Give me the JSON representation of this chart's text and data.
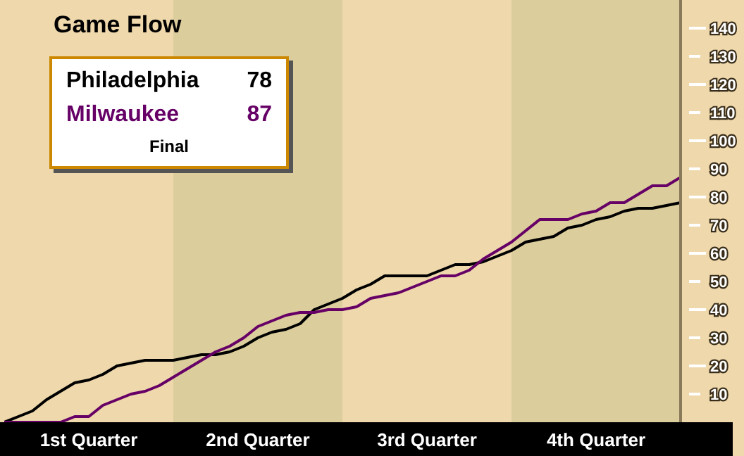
{
  "chart_data": {
    "type": "line",
    "title": "Game Flow",
    "ylim": [
      0,
      150
    ],
    "categories": [
      null,
      null,
      null,
      null,
      null,
      null,
      "1st Quarter",
      null,
      null,
      null,
      null,
      null,
      null,
      null,
      null,
      null,
      null,
      null,
      "2nd Quarter",
      null,
      null,
      null,
      null,
      null,
      null,
      null,
      null,
      null,
      null,
      null,
      "3rd Quarter",
      null,
      null,
      null,
      null,
      null,
      null,
      null,
      null,
      null,
      null,
      null,
      "4th Quarter",
      null,
      null,
      null,
      null,
      null,
      null
    ],
    "yticks": [
      10,
      20,
      30,
      40,
      50,
      60,
      70,
      80,
      90,
      100,
      110,
      120,
      130,
      140
    ],
    "series": [
      {
        "name": "Philadelphia",
        "color": "#000000",
        "values": [
          0,
          2,
          4,
          8,
          11,
          14,
          15,
          17,
          20,
          21,
          22,
          22,
          22,
          23,
          24,
          24,
          25,
          27,
          30,
          32,
          33,
          35,
          40,
          42,
          44,
          47,
          49,
          52,
          52,
          52,
          52,
          54,
          56,
          56,
          57,
          59,
          61,
          64,
          65,
          66,
          69,
          70,
          72,
          73,
          75,
          76,
          76,
          77,
          78
        ]
      },
      {
        "name": "Milwaukee",
        "color": "#660066",
        "values": [
          0,
          0,
          0,
          0,
          0,
          2,
          2,
          6,
          8,
          10,
          11,
          13,
          16,
          19,
          22,
          25,
          27,
          30,
          34,
          36,
          38,
          39,
          39,
          40,
          40,
          41,
          44,
          45,
          46,
          48,
          50,
          52,
          52,
          54,
          58,
          61,
          64,
          68,
          72,
          72,
          72,
          74,
          75,
          78,
          78,
          81,
          84,
          84,
          87
        ]
      }
    ],
    "legend": "top left",
    "annotations": [
      "78",
      "87",
      "Final"
    ]
  }
}
